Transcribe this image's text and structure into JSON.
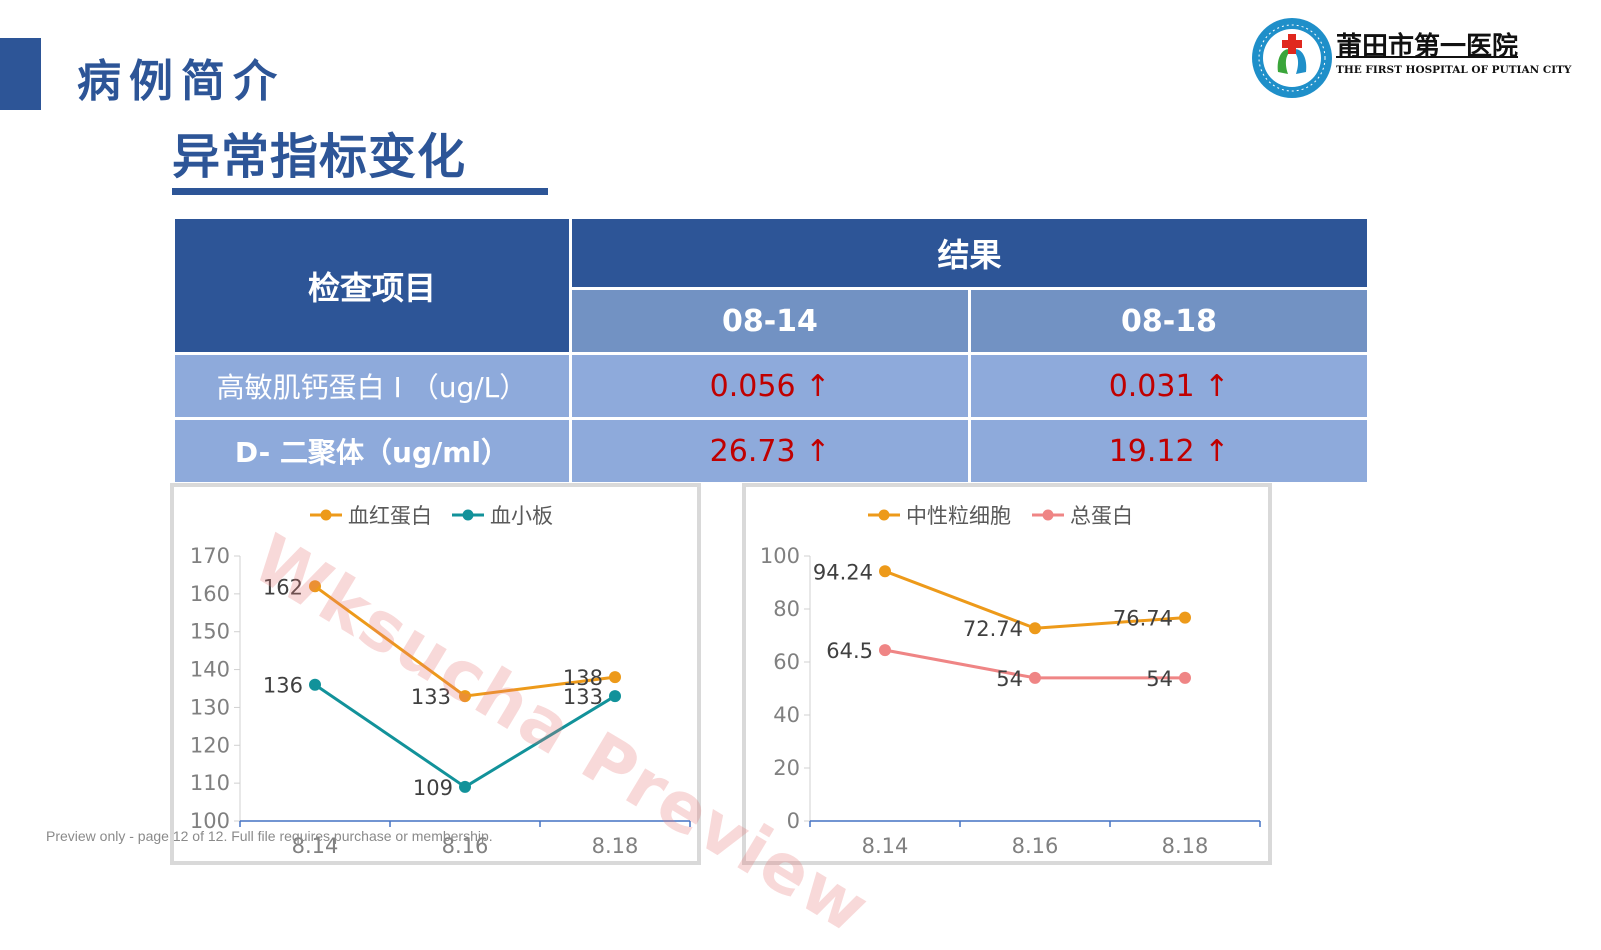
{
  "page": {
    "section_title": "病例简介",
    "sub_title": "异常指标变化"
  },
  "logo": {
    "name_cn": "莆田市第一医院",
    "name_en": "THE FIRST HOSPITAL OF PUTIAN CITY",
    "colors": {
      "ring": "#1f8fc9",
      "cross": "#e0281e",
      "leaf": "#3aa53a"
    }
  },
  "table": {
    "item_header": "检查项目",
    "result_header": "结果",
    "date_headers": [
      "08-14",
      "08-18"
    ],
    "rows": [
      {
        "label": "高敏肌钙蛋白 I （ug/L）",
        "values": [
          "0.056 ↑",
          "0.031 ↑"
        ]
      },
      {
        "label": "D- 二聚体（ug/ml）",
        "values": [
          "26.73 ↑",
          "19.12 ↑"
        ]
      }
    ],
    "colors": {
      "header": "#2d5597",
      "subheader": "#7292c3",
      "body": "#8eaadb",
      "abnormal": "#c00000"
    }
  },
  "chart_data": [
    {
      "type": "line",
      "categories": [
        "8.14",
        "8.16",
        "8.18"
      ],
      "series": [
        {
          "name": "血红蛋白",
          "values": [
            162,
            133,
            138
          ],
          "color": "#ed9a1a",
          "labels": [
            "162",
            "133",
            "138"
          ]
        },
        {
          "name": "血小板",
          "values": [
            136,
            109,
            133
          ],
          "color": "#12929a",
          "labels": [
            "136",
            "109",
            "133"
          ]
        }
      ],
      "ylim": [
        100,
        170
      ],
      "yticks": [
        "100",
        "110",
        "120",
        "130",
        "140",
        "150",
        "160",
        "170"
      ],
      "legend": "top",
      "grid": false
    },
    {
      "type": "line",
      "categories": [
        "8.14",
        "8.16",
        "8.18"
      ],
      "series": [
        {
          "name": "中性粒细胞",
          "values": [
            94.24,
            72.74,
            76.74
          ],
          "color": "#ed9a1a",
          "labels": [
            "94.24",
            "72.74",
            "76.74"
          ]
        },
        {
          "name": "总蛋白",
          "values": [
            64.5,
            54,
            54
          ],
          "color": "#ef8585",
          "labels": [
            "64.5",
            "54",
            "54"
          ]
        }
      ],
      "ylim": [
        0,
        100
      ],
      "yticks": [
        "0",
        "20",
        "40",
        "60",
        "80",
        "100"
      ],
      "legend": "top",
      "grid": false
    }
  ],
  "watermark": "Wksucha Preview",
  "preview_note": "Preview only - page 12 of 12. Full file requires purchase or membership."
}
